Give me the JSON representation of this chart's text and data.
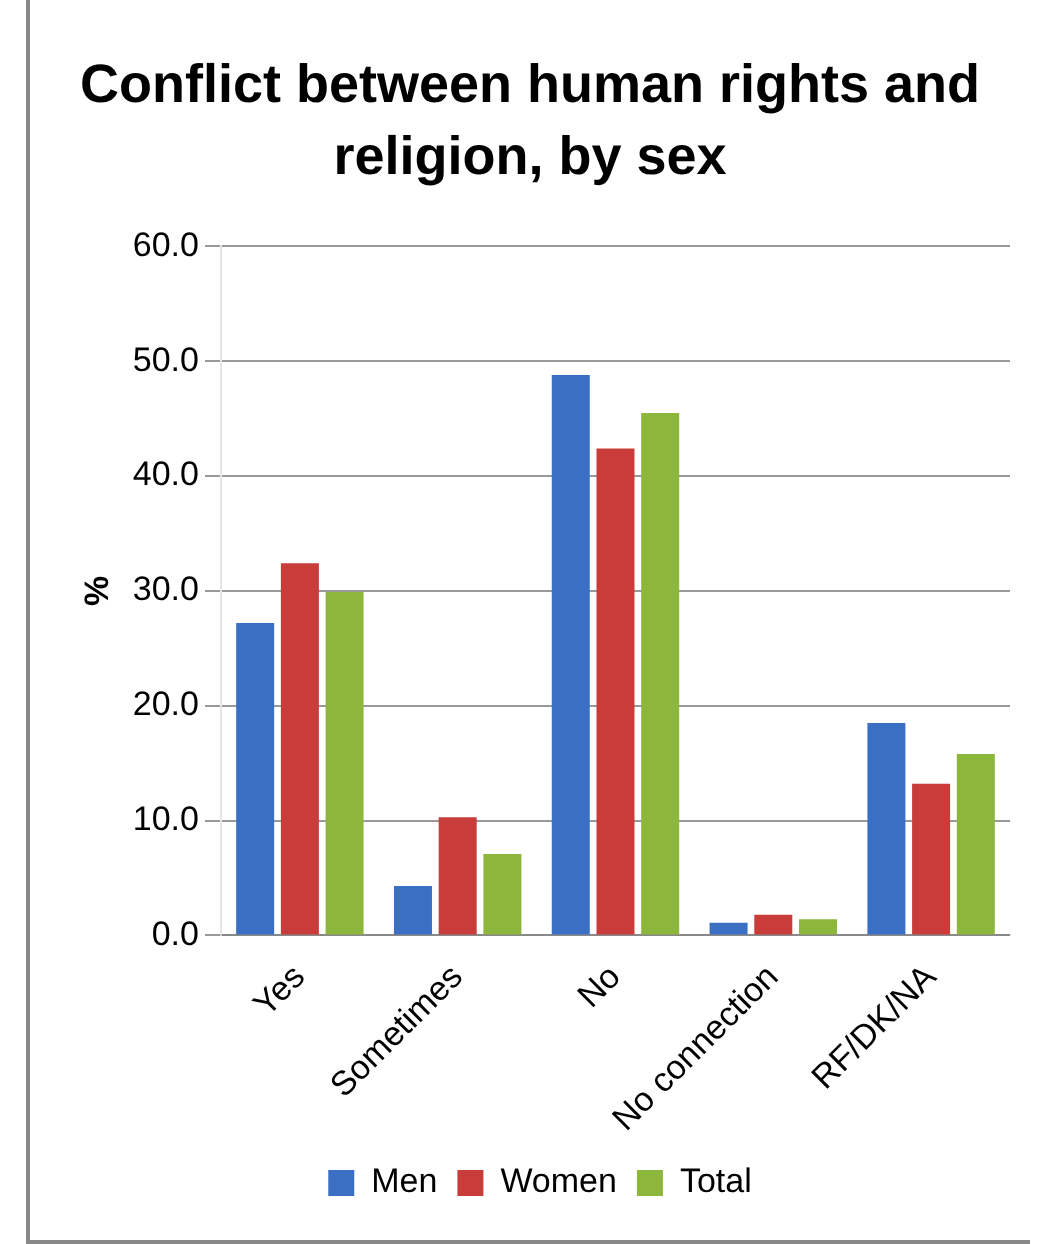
{
  "chart_data": {
    "type": "bar",
    "title": "Conflict between human rights and religion, by sex",
    "ylabel": "%",
    "categories": [
      "Yes",
      "Sometimes",
      "No",
      "No connection",
      "RF/DK/NA"
    ],
    "series": [
      {
        "name": "Men",
        "color": "#3a6fc4",
        "values": [
          27.2,
          4.3,
          48.8,
          1.1,
          18.5
        ]
      },
      {
        "name": "Women",
        "color": "#c83c3a",
        "values": [
          32.4,
          10.3,
          42.4,
          1.8,
          13.2
        ]
      },
      {
        "name": "Total",
        "color": "#8db63c",
        "values": [
          29.9,
          7.1,
          45.5,
          1.4,
          15.8
        ]
      }
    ],
    "ylim": [
      0,
      60
    ],
    "yticks": [
      {
        "value": 0,
        "label": "0.0"
      },
      {
        "value": 10,
        "label": "10.0"
      },
      {
        "value": 20,
        "label": "20.0"
      },
      {
        "value": 30,
        "label": "30.0"
      },
      {
        "value": 40,
        "label": "40.0"
      },
      {
        "value": 50,
        "label": "50.0"
      },
      {
        "value": 60,
        "label": "60.0"
      }
    ],
    "grid": "y",
    "legend": "bottom"
  }
}
